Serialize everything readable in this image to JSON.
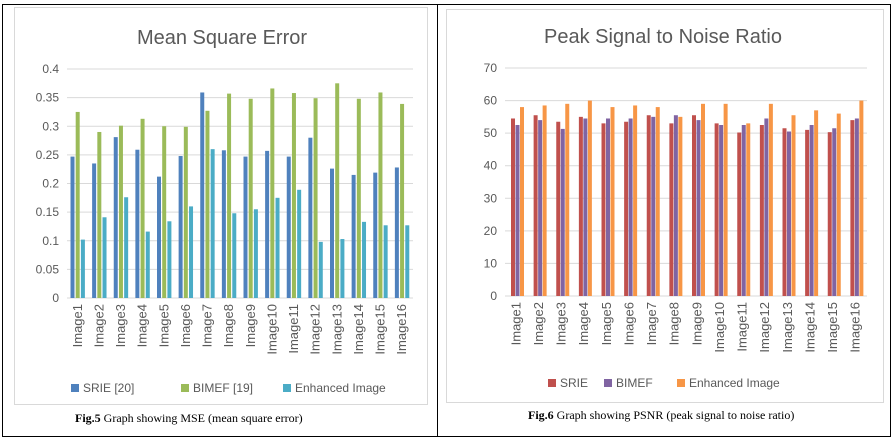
{
  "chart_data": [
    {
      "type": "bar",
      "title": "Mean Square Error",
      "xlabel": "",
      "ylabel": "",
      "ylim": [
        0,
        0.4
      ],
      "yticks": [
        0,
        0.05,
        0.1,
        0.15,
        0.2,
        0.25,
        0.3,
        0.35,
        0.4
      ],
      "ytick_labels": [
        "0",
        "0.05",
        "0.1",
        "0.15",
        "0.2",
        "0.25",
        "0.3",
        "0.35",
        "0.4"
      ],
      "grid": true,
      "legend_position": "bottom",
      "categories": [
        "Image1",
        "Image2",
        "Image3",
        "Image4",
        "Image5",
        "Image6",
        "Image7",
        "Image8",
        "Image9",
        "Image10",
        "Image11",
        "Image12",
        "Image13",
        "Image14",
        "Image15",
        "Image16"
      ],
      "series": [
        {
          "name": "SRIE [20]",
          "color": "#4f81bd",
          "values": [
            0.247,
            0.235,
            0.281,
            0.259,
            0.212,
            0.248,
            0.359,
            0.258,
            0.247,
            0.257,
            0.247,
            0.28,
            0.226,
            0.215,
            0.219,
            0.228
          ]
        },
        {
          "name": "BIMEF [19]",
          "color": "#9bbb59",
          "values": [
            0.325,
            0.29,
            0.301,
            0.313,
            0.3,
            0.299,
            0.327,
            0.357,
            0.348,
            0.366,
            0.358,
            0.349,
            0.375,
            0.348,
            0.359,
            0.339
          ]
        },
        {
          "name": "Enhanced Image",
          "color": "#4bacc6",
          "values": [
            0.102,
            0.141,
            0.176,
            0.116,
            0.134,
            0.16,
            0.26,
            0.148,
            0.155,
            0.175,
            0.189,
            0.098,
            0.103,
            0.133,
            0.127,
            0.127
          ]
        }
      ]
    },
    {
      "type": "bar",
      "title": "Peak Signal to Noise Ratio",
      "xlabel": "",
      "ylabel": "",
      "ylim": [
        0,
        70
      ],
      "yticks": [
        0,
        10,
        20,
        30,
        40,
        50,
        60,
        70
      ],
      "ytick_labels": [
        "0",
        "10",
        "20",
        "30",
        "40",
        "50",
        "60",
        "70"
      ],
      "grid": true,
      "legend_position": "bottom",
      "categories": [
        "Image1",
        "Image2",
        "Image3",
        "Image4",
        "Image5",
        "Image6",
        "Image7",
        "Image8",
        "Image9",
        "Image10",
        "Image11",
        "Image12",
        "Image13",
        "Image14",
        "Image15",
        "Image16"
      ],
      "series": [
        {
          "name": "SRIE",
          "color": "#c0504d",
          "values": [
            54.5,
            55.5,
            53.5,
            55,
            53,
            53.5,
            55.5,
            53,
            55.5,
            53,
            50.2,
            52.5,
            51.5,
            51,
            50.3,
            54
          ]
        },
        {
          "name": "BIMEF",
          "color": "#8064a2",
          "values": [
            52.5,
            54,
            51.3,
            54.5,
            54.5,
            54.5,
            55,
            55.5,
            54,
            52.5,
            52.5,
            54.5,
            50.5,
            52.5,
            51.5,
            54.5
          ]
        },
        {
          "name": "Enhanced Image",
          "color": "#f79646",
          "values": [
            58,
            58.5,
            59,
            60,
            58,
            58.5,
            58,
            55,
            59,
            59,
            53,
            59,
            55.5,
            57,
            56,
            60
          ]
        }
      ]
    }
  ],
  "captions": {
    "left_label": "Fig.5",
    "left_text": " Graph showing MSE (mean square error)",
    "right_label": "Fig.6",
    "right_text": " Graph showing PSNR (peak signal to noise ratio)"
  }
}
